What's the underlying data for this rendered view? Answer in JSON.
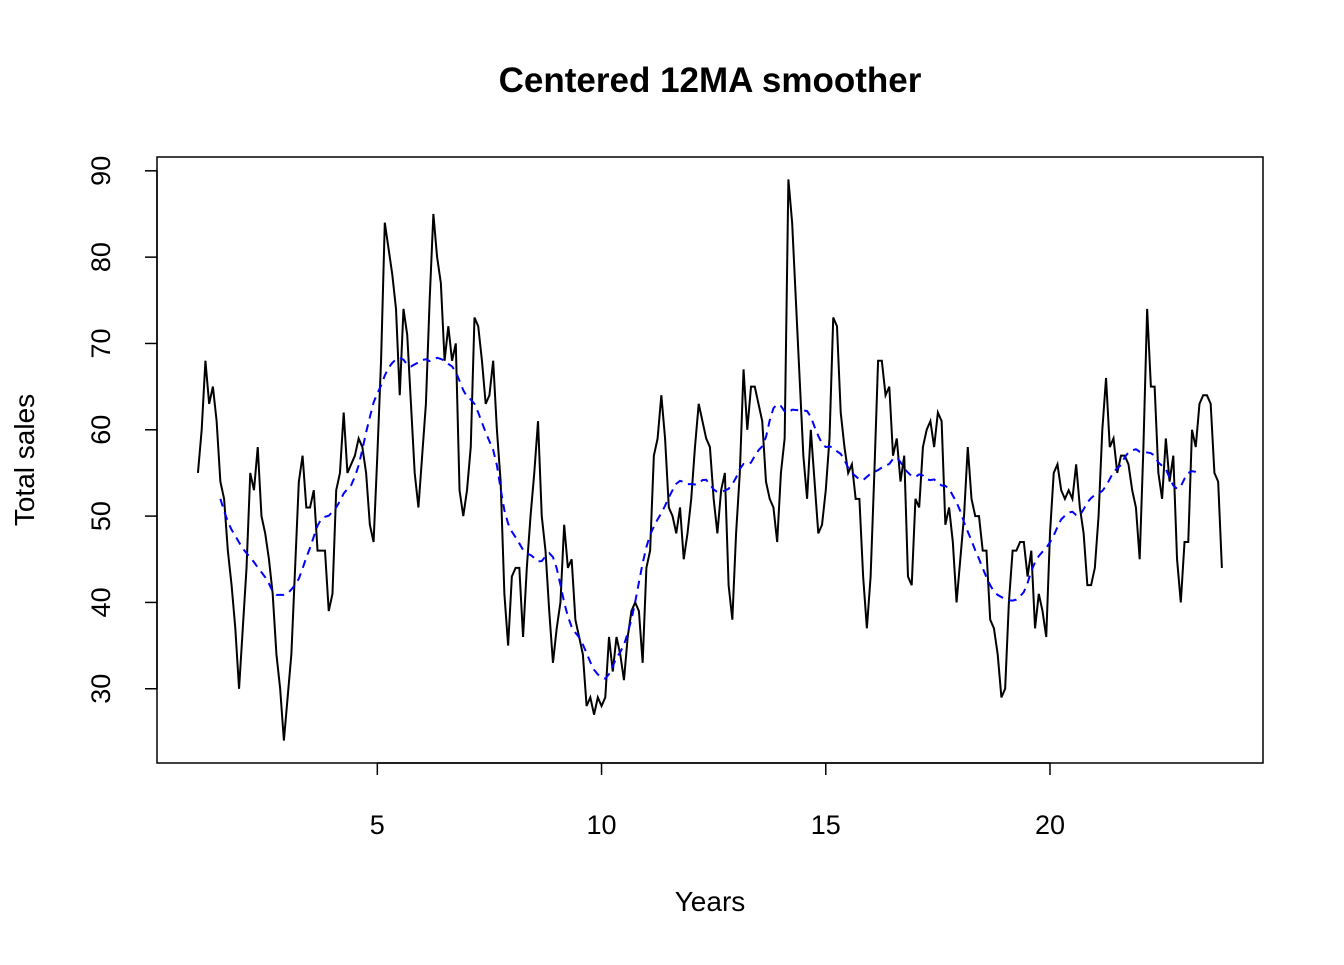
{
  "chart_data": {
    "type": "line",
    "title": "Centered 12MA smoother",
    "xlabel": "Years",
    "ylabel": "Total sales",
    "xlim": [
      0.087,
      24.75
    ],
    "ylim": [
      21.4,
      91.6
    ],
    "x_ticks": [
      5,
      10,
      15,
      20
    ],
    "y_ticks": [
      30,
      40,
      50,
      60,
      70,
      80,
      90
    ],
    "grid": false,
    "legend": "none",
    "start": 1,
    "frequency": 12,
    "series": [
      {
        "color": "#000000",
        "style": "solid",
        "values": [
          55,
          60,
          68,
          63,
          65,
          61,
          54,
          52,
          46,
          42,
          37,
          30,
          37,
          44,
          55,
          53,
          58,
          50,
          48,
          45,
          41,
          34,
          30,
          24,
          29,
          34,
          44,
          54,
          57,
          51,
          51,
          53,
          46,
          46,
          46,
          39,
          41,
          53,
          55,
          62,
          55,
          56,
          57,
          59,
          58,
          55,
          49,
          47,
          57,
          68,
          84,
          81,
          78,
          74,
          64,
          74,
          71,
          63,
          55,
          51,
          57,
          63,
          75,
          85,
          80,
          77,
          68,
          72,
          68,
          70,
          53,
          50,
          53,
          58,
          73,
          72,
          68,
          63,
          64,
          68,
          60,
          54,
          41,
          35,
          43,
          44,
          44,
          36,
          44,
          50,
          55,
          61,
          50,
          46,
          39,
          33,
          37,
          40,
          49,
          44,
          45,
          38,
          36,
          34,
          28,
          29,
          27,
          29,
          28,
          29,
          36,
          32,
          36,
          34,
          31,
          36,
          39,
          40,
          39,
          33,
          44,
          46,
          57,
          59,
          64,
          59,
          51,
          50,
          48,
          51,
          45,
          48,
          52,
          58,
          63,
          61,
          59,
          58,
          52,
          48,
          53,
          55,
          42,
          38,
          48,
          55,
          67,
          60,
          65,
          65,
          63,
          61,
          54,
          52,
          51,
          47,
          55,
          59,
          89,
          84,
          75,
          66,
          57,
          52,
          60,
          54,
          48,
          49,
          53,
          59,
          73,
          72,
          62,
          58,
          55,
          56,
          52,
          52,
          43,
          37,
          43,
          55,
          68,
          68,
          64,
          65,
          57,
          59,
          54,
          57,
          43,
          42,
          52,
          51,
          58,
          60,
          61,
          58,
          62,
          61,
          49,
          51,
          47,
          40,
          45,
          50,
          58,
          52,
          50,
          50,
          46,
          46,
          38,
          37,
          34,
          29,
          30,
          40,
          46,
          46,
          47,
          47,
          43,
          46,
          37,
          41,
          39,
          36,
          48,
          55,
          56,
          53,
          52,
          53,
          52,
          56,
          51,
          48,
          42,
          42,
          44,
          50,
          60,
          66,
          58,
          59,
          55,
          57,
          57,
          56,
          53,
          51,
          45,
          58,
          74,
          65,
          65,
          55,
          52,
          59,
          54,
          57,
          45,
          40,
          47,
          47,
          60,
          58,
          63,
          64,
          64,
          63,
          55,
          54,
          44
        ]
      },
      {
        "color": "#0000FF",
        "style": "dashed",
        "smoother": "centered moving average",
        "order": 12
      }
    ]
  }
}
